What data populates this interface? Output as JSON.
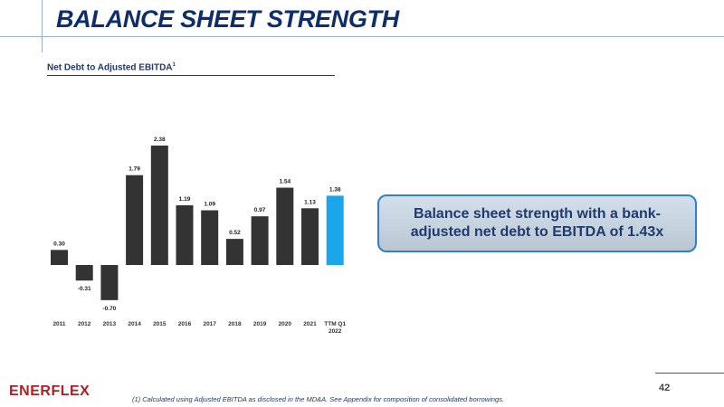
{
  "slide": {
    "title": "BALANCE SHEET STRENGTH",
    "page_number": "42",
    "logo_text": "ENERFLEX",
    "footnote": "(1) Calculated using Adjusted EBITDA as disclosed in the MD&A. See Appendix for composition of consolidated borrowings."
  },
  "chart_heading": {
    "text": "Net Debt to Adjusted EBITDA",
    "superscript": "1"
  },
  "callout": {
    "text": "Balance sheet strength with a bank-adjusted net debt to EBITDA of 1.43x"
  },
  "colors": {
    "bar": "#333333",
    "highlight_bar": "#1aa6e8",
    "title": "#0e2d6b",
    "logo": "#b01e23"
  },
  "chart_data": {
    "type": "bar",
    "categories": [
      "2011",
      "2012",
      "2013",
      "2014",
      "2015",
      "2016",
      "2017",
      "2018",
      "2019",
      "2020",
      "2021",
      "TTM Q1 2022"
    ],
    "values": [
      0.3,
      -0.31,
      -0.7,
      1.79,
      2.38,
      1.19,
      1.09,
      0.52,
      0.97,
      1.54,
      1.13,
      1.38
    ],
    "data_labels": [
      "0.30",
      "-0.31",
      "-0.70",
      "1.79",
      "2.38",
      "1.19",
      "1.09",
      "0.52",
      "0.97",
      "1.54",
      "1.13",
      "1.38"
    ],
    "highlight_index": 11,
    "ylim": [
      -0.7,
      2.38
    ],
    "grid": false,
    "legend": "none"
  }
}
